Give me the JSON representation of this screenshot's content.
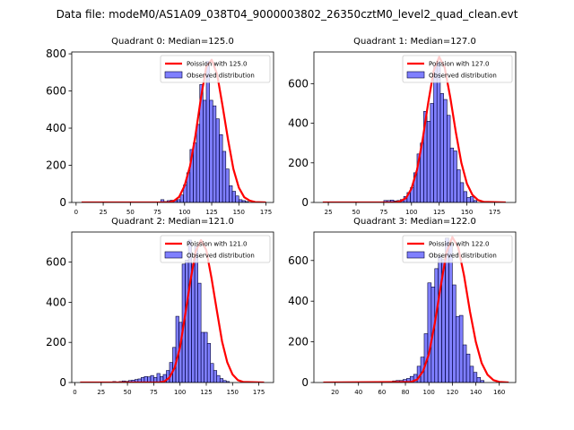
{
  "figure_title": "Data file: modeM0/AS1A09_038T04_9000003802_26350cztM0_level2_quad_clean.evt",
  "chart_data": [
    {
      "type": "bar",
      "title": "Quadrant 0: Median=125.0",
      "xlim": [
        -4,
        182
      ],
      "ylim": [
        0,
        810
      ],
      "xticks": [
        0,
        25,
        50,
        75,
        100,
        125,
        150,
        175
      ],
      "yticks": [
        0,
        200,
        400,
        600,
        800
      ],
      "legend_position": "top-right",
      "series": [
        {
          "name": "Poission with 125.0",
          "kind": "line",
          "color": "#ff0000",
          "x": [
            5,
            85,
            90,
            95,
            100,
            105,
            110,
            115,
            120,
            125,
            130,
            135,
            140,
            145,
            150,
            155,
            160,
            165,
            175
          ],
          "y": [
            0,
            0,
            8,
            30,
            90,
            195,
            360,
            560,
            730,
            768,
            690,
            520,
            340,
            180,
            80,
            28,
            10,
            2,
            0
          ]
        },
        {
          "name": "Observed distribution",
          "kind": "hist",
          "color": "#0000ff",
          "bin_width": 3,
          "bin_start": 78,
          "counts": [
            15,
            5,
            10,
            12,
            10,
            15,
            40,
            95,
            160,
            285,
            320,
            420,
            635,
            550,
            760,
            550,
            520,
            450,
            365,
            275,
            180,
            90,
            60,
            35,
            15,
            10,
            5
          ]
        }
      ]
    },
    {
      "type": "bar",
      "title": "Quadrant 1: Median=127.0",
      "xlim": [
        12,
        194
      ],
      "ylim": [
        0,
        760
      ],
      "xticks": [
        25,
        50,
        75,
        100,
        125,
        150,
        175
      ],
      "yticks": [
        0,
        200,
        400,
        600
      ],
      "legend_position": "top-right",
      "series": [
        {
          "name": "Poission with 127.0",
          "kind": "line",
          "color": "#ff0000",
          "x": [
            20,
            85,
            90,
            95,
            100,
            105,
            110,
            115,
            120,
            125,
            130,
            135,
            140,
            145,
            150,
            155,
            160,
            165,
            185
          ],
          "y": [
            0,
            0,
            6,
            22,
            70,
            165,
            315,
            500,
            665,
            735,
            680,
            530,
            355,
            200,
            95,
            38,
            12,
            3,
            0
          ]
        },
        {
          "name": "Observed distribution",
          "kind": "hist",
          "color": "#0000ff",
          "bin_width": 3,
          "bin_start": 75,
          "counts": [
            10,
            10,
            12,
            8,
            10,
            15,
            30,
            50,
            75,
            150,
            245,
            300,
            460,
            410,
            500,
            690,
            710,
            550,
            520,
            440,
            275,
            260,
            165,
            100,
            55,
            25,
            30,
            10
          ]
        }
      ]
    },
    {
      "type": "bar",
      "title": "Quadrant 2: Median=121.0",
      "xlim": [
        -3,
        189
      ],
      "ylim": [
        0,
        750
      ],
      "xticks": [
        0,
        25,
        50,
        75,
        100,
        125,
        150,
        175
      ],
      "yticks": [
        0,
        200,
        400,
        600
      ],
      "legend_position": "top-right",
      "series": [
        {
          "name": "Poission with 121.0",
          "kind": "line",
          "color": "#ff0000",
          "x": [
            5,
            80,
            85,
            90,
            95,
            100,
            105,
            110,
            115,
            120,
            125,
            130,
            135,
            140,
            145,
            150,
            155,
            160,
            180
          ],
          "y": [
            0,
            0,
            5,
            25,
            75,
            175,
            340,
            510,
            655,
            710,
            660,
            520,
            360,
            205,
            100,
            40,
            12,
            3,
            0
          ]
        },
        {
          "name": "Observed distribution",
          "kind": "hist",
          "color": "#0000ff",
          "bin_width": 3,
          "bin_start": 36,
          "counts": [
            5,
            3,
            5,
            8,
            6,
            10,
            12,
            15,
            18,
            25,
            30,
            28,
            35,
            25,
            45,
            30,
            40,
            60,
            100,
            175,
            330,
            300,
            590,
            610,
            710,
            590,
            680,
            495,
            250,
            250,
            195,
            95,
            60,
            35,
            20,
            10,
            5
          ]
        }
      ]
    },
    {
      "type": "bar",
      "title": "Quadrant 3: Median=122.0",
      "xlim": [
        2,
        174
      ],
      "ylim": [
        0,
        740
      ],
      "xticks": [
        20,
        40,
        60,
        80,
        100,
        120,
        140,
        160
      ],
      "yticks": [
        0,
        200,
        400,
        600
      ],
      "legend_position": "top-right",
      "series": [
        {
          "name": "Poission with 122.0",
          "kind": "line",
          "color": "#ff0000",
          "x": [
            10,
            85,
            90,
            95,
            100,
            105,
            110,
            115,
            120,
            125,
            130,
            135,
            140,
            145,
            150,
            155,
            160,
            168
          ],
          "y": [
            0,
            3,
            15,
            55,
            140,
            290,
            470,
            640,
            715,
            665,
            525,
            350,
            200,
            95,
            38,
            12,
            3,
            0
          ]
        },
        {
          "name": "Observed distribution",
          "kind": "hist",
          "color": "#0000ff",
          "bin_width": 3,
          "bin_start": 60,
          "counts": [
            5,
            5,
            5,
            8,
            10,
            10,
            15,
            20,
            30,
            40,
            80,
            125,
            240,
            490,
            470,
            560,
            620,
            605,
            710,
            680,
            480,
            325,
            330,
            185,
            140,
            80,
            50,
            25,
            10
          ]
        }
      ]
    }
  ]
}
